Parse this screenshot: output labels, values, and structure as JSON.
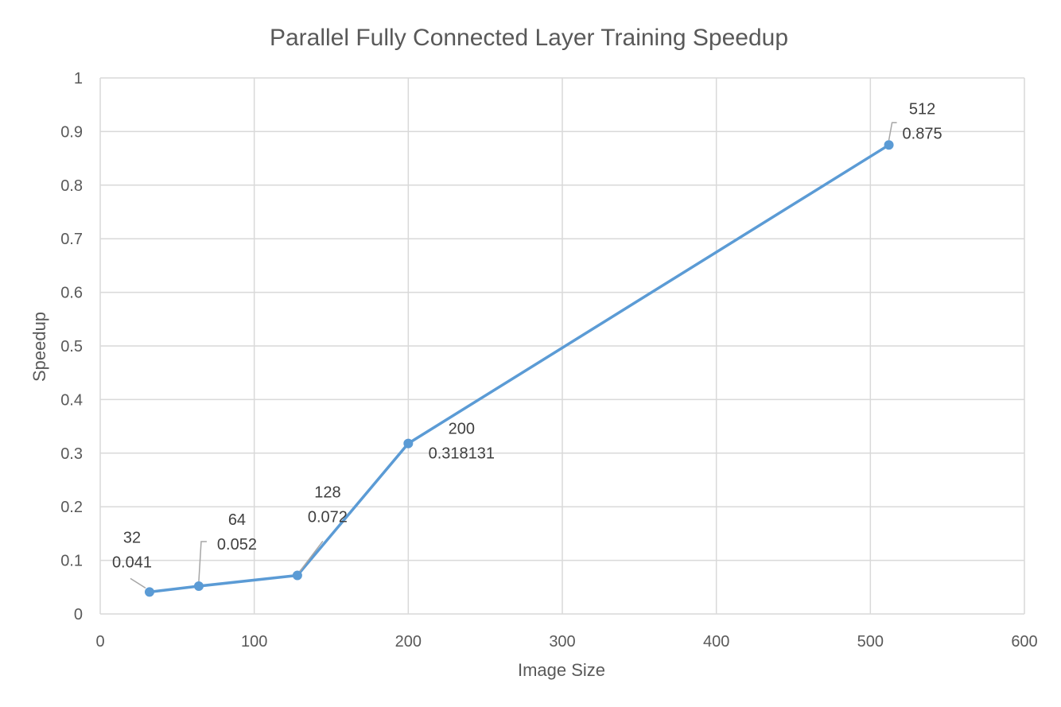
{
  "chart_data": {
    "type": "scatter",
    "title": "Parallel Fully Connected Layer Training Speedup",
    "xlabel": "Image Size",
    "ylabel": "Speedup",
    "xlim": [
      0,
      600
    ],
    "ylim": [
      0,
      1
    ],
    "x_ticks": [
      "0",
      "100",
      "200",
      "300",
      "400",
      "500",
      "600"
    ],
    "y_ticks": [
      "0",
      "0.1",
      "0.2",
      "0.3",
      "0.4",
      "0.5",
      "0.6",
      "0.7",
      "0.8",
      "0.9",
      "1"
    ],
    "grid": true,
    "legend": "none",
    "line_color": "#5b9bd5",
    "series": [
      {
        "x": [
          32,
          64,
          128,
          200,
          512
        ],
        "y": [
          0.041,
          0.052,
          0.072,
          0.318131,
          0.875
        ],
        "labels": [
          {
            "x": "32",
            "y": "0.041"
          },
          {
            "x": "64",
            "y": "0.052"
          },
          {
            "x": "128",
            "y": "0.072"
          },
          {
            "x": "200",
            "y": "0.318131"
          },
          {
            "x": "512",
            "y": "0.875"
          }
        ]
      }
    ]
  }
}
